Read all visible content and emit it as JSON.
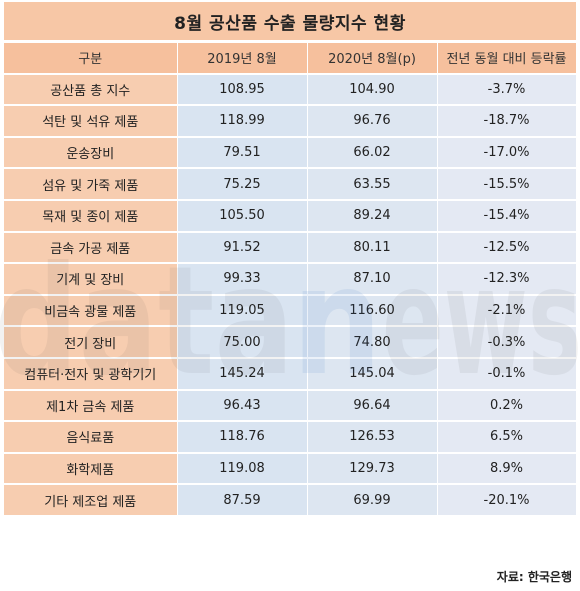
{
  "title": "8월 공산품 수출 물량지수 현황",
  "headers": [
    "구분",
    "2019년 8월",
    "2020년 8월(p)",
    "전년 동월 대비 등락률"
  ],
  "rows": [
    {
      "label": "공산품 총 지수",
      "v2019": "108.95",
      "v2020": "104.90",
      "change": "-3.7%"
    },
    {
      "label": "석탄 및 석유 제품",
      "v2019": "118.99",
      "v2020": "96.76",
      "change": "-18.7%"
    },
    {
      "label": "운송장비",
      "v2019": "79.51",
      "v2020": "66.02",
      "change": "-17.0%"
    },
    {
      "label": "섬유 및 가죽 제품",
      "v2019": "75.25",
      "v2020": "63.55",
      "change": "-15.5%"
    },
    {
      "label": "목재 및 종이 제품",
      "v2019": "105.50",
      "v2020": "89.24",
      "change": "-15.4%"
    },
    {
      "label": "금속 가공 제품",
      "v2019": "91.52",
      "v2020": "80.11",
      "change": "-12.5%"
    },
    {
      "label": "기계 및 장비",
      "v2019": "99.33",
      "v2020": "87.10",
      "change": "-12.3%"
    },
    {
      "label": "비금속 광물 제품",
      "v2019": "119.05",
      "v2020": "116.60",
      "change": "-2.1%"
    },
    {
      "label": "전기 장비",
      "v2019": "75.00",
      "v2020": "74.80",
      "change": "-0.3%"
    },
    {
      "label": "컴퓨터·전자 및 광학기기",
      "v2019": "145.24",
      "v2020": "145.04",
      "change": "-0.1%"
    },
    {
      "label": "제1차 금속 제품",
      "v2019": "96.43",
      "v2020": "96.64",
      "change": "0.2%"
    },
    {
      "label": "음식료품",
      "v2019": "118.76",
      "v2020": "126.53",
      "change": "6.5%"
    },
    {
      "label": "화학제품",
      "v2019": "119.08",
      "v2020": "129.73",
      "change": "8.9%"
    },
    {
      "label": "기타 제조업 제품",
      "v2019": "87.59",
      "v2020": "69.99",
      "change": "-20.1%"
    }
  ],
  "source": "자료: 한국은행",
  "watermark": "datanews",
  "colors": {
    "title_bg": "#f7c7a6",
    "header_bg": "#f6c09d",
    "label_bg": "#f7cdb0",
    "value_bg": "#dde6f1",
    "watermark_dark": "#444444",
    "watermark_blue": "#3a78c8"
  }
}
